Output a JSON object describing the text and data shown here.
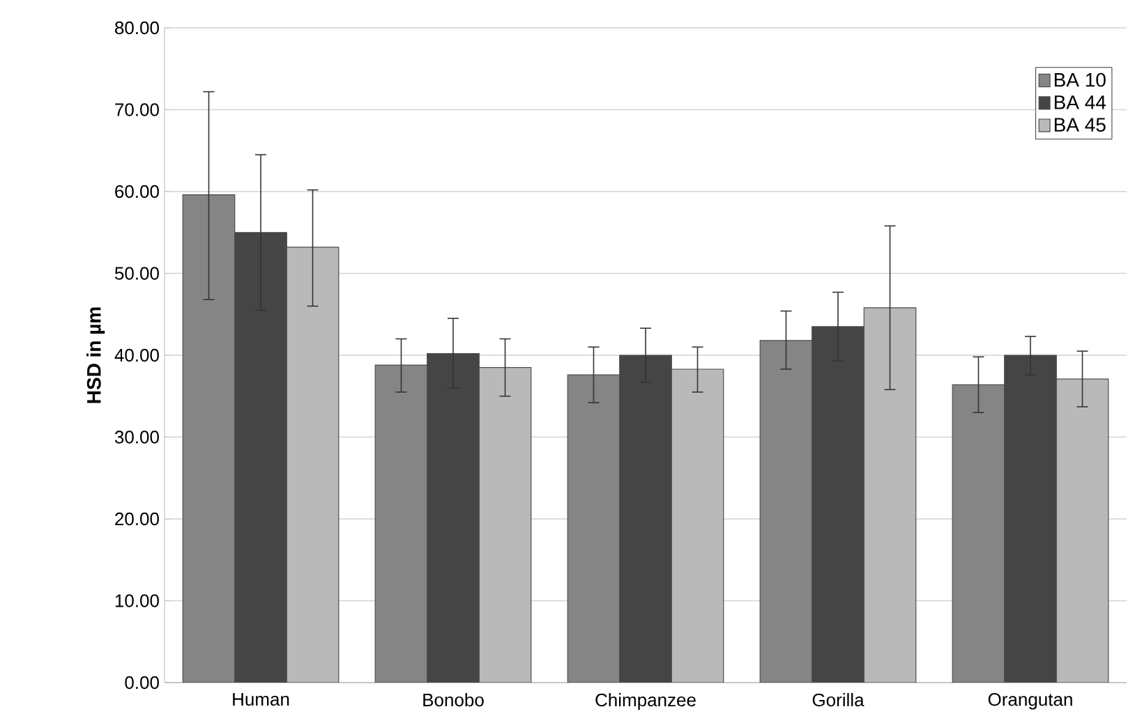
{
  "chart_data": {
    "type": "bar",
    "ylabel": "HSD in µm",
    "categories": [
      "Human",
      "Bonobo",
      "Chimpanzee",
      "Gorilla",
      "Orangutan"
    ],
    "series": [
      {
        "name": "BA 10",
        "color": "#858585",
        "values": [
          59.6,
          38.8,
          37.6,
          41.8,
          36.4
        ],
        "errors": [
          [
            46.8,
            72.2
          ],
          [
            35.5,
            42.0
          ],
          [
            34.2,
            41.0
          ],
          [
            38.3,
            45.4
          ],
          [
            33.0,
            39.8
          ]
        ]
      },
      {
        "name": "BA 44",
        "color": "#454545",
        "values": [
          55.0,
          40.2,
          40.0,
          43.5,
          40.0
        ],
        "errors": [
          [
            45.5,
            64.5
          ],
          [
            36.0,
            44.5
          ],
          [
            36.7,
            43.3
          ],
          [
            39.3,
            47.7
          ],
          [
            37.6,
            42.3
          ]
        ]
      },
      {
        "name": "BA 45",
        "color": "#b9b9b9",
        "values": [
          53.2,
          38.5,
          38.3,
          45.8,
          37.1
        ],
        "errors": [
          [
            46.0,
            60.2
          ],
          [
            35.0,
            42.0
          ],
          [
            35.5,
            41.0
          ],
          [
            35.8,
            55.8
          ],
          [
            33.7,
            40.5
          ]
        ]
      }
    ],
    "ylim": [
      0,
      80
    ],
    "yticks": [
      {
        "value": 0,
        "label": "0.00"
      },
      {
        "value": 10,
        "label": "10.00"
      },
      {
        "value": 20,
        "label": "20.00"
      },
      {
        "value": 30,
        "label": "30.00"
      },
      {
        "value": 40,
        "label": "40.00"
      },
      {
        "value": 50,
        "label": "50.00"
      },
      {
        "value": 60,
        "label": "60.00"
      },
      {
        "value": 70,
        "label": "70.00"
      },
      {
        "value": 80,
        "label": "80.00"
      }
    ],
    "grid": "y",
    "legend": "top right"
  }
}
